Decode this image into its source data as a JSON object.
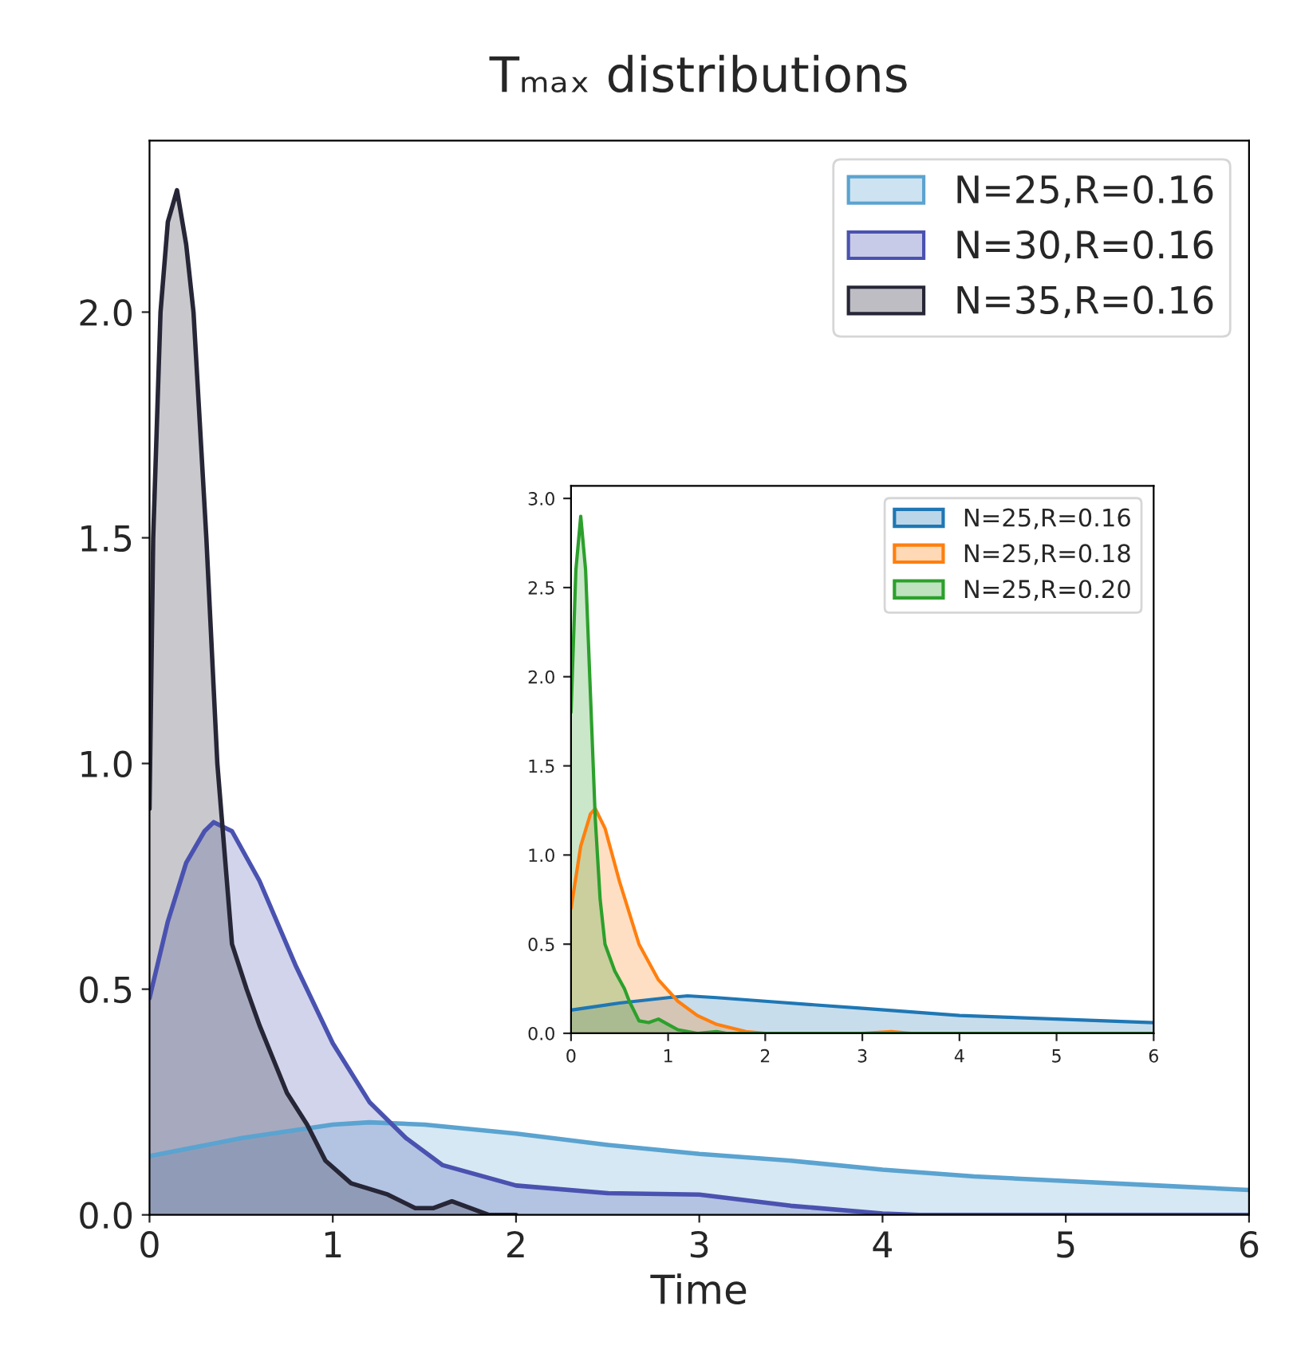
{
  "chart_data": [
    {
      "type": "area",
      "title": "Tₘₐₓ distributions",
      "xlabel": "Time",
      "xlim": [
        0,
        6
      ],
      "xticks": [
        0,
        1,
        2,
        3,
        4,
        5,
        6
      ],
      "ylim": [
        0,
        2.38
      ],
      "yticks": [
        {
          "value": 0,
          "label": "0.0"
        },
        {
          "value": 0.5,
          "label": "0.5"
        },
        {
          "value": 1,
          "label": "1.0"
        },
        {
          "value": 1.5,
          "label": "1.5"
        },
        {
          "value": 2,
          "label": "2.0"
        }
      ],
      "legend": "top right",
      "series": [
        {
          "name": "N=25,R=0.16",
          "color": "#5ba3d0",
          "x": [
            0,
            0.5,
            1,
            1.2,
            1.5,
            2,
            2.5,
            3,
            3.5,
            4,
            4.5,
            5,
            5.5,
            6
          ],
          "values": [
            0.13,
            0.17,
            0.2,
            0.205,
            0.2,
            0.18,
            0.155,
            0.135,
            0.12,
            0.1,
            0.085,
            0.075,
            0.065,
            0.055
          ]
        },
        {
          "name": "N=30,R=0.16",
          "color": "#4a52b0",
          "x": [
            0,
            0.1,
            0.2,
            0.3,
            0.35,
            0.45,
            0.6,
            0.8,
            1,
            1.2,
            1.4,
            1.6,
            2,
            2.5,
            3,
            3.5,
            4,
            4.2,
            6
          ],
          "values": [
            0.48,
            0.65,
            0.78,
            0.85,
            0.87,
            0.85,
            0.74,
            0.55,
            0.38,
            0.25,
            0.17,
            0.11,
            0.065,
            0.048,
            0.045,
            0.02,
            0.003,
            0,
            0
          ]
        },
        {
          "name": "N=35,R=0.16",
          "color": "#262637",
          "x": [
            0,
            0.02,
            0.06,
            0.1,
            0.15,
            0.2,
            0.24,
            0.31,
            0.37,
            0.45,
            0.53,
            0.6,
            0.67,
            0.75,
            0.86,
            0.96,
            1.1,
            1.3,
            1.45,
            1.55,
            1.65,
            1.75,
            1.85,
            2
          ],
          "values": [
            0.9,
            1.5,
            2.0,
            2.2,
            2.27,
            2.15,
            2.0,
            1.5,
            1.0,
            0.6,
            0.5,
            0.42,
            0.35,
            0.27,
            0.2,
            0.12,
            0.07,
            0.045,
            0.015,
            0.015,
            0.03,
            0.015,
            0,
            0
          ]
        }
      ]
    },
    {
      "type": "area",
      "xlim": [
        0,
        6
      ],
      "xticks": [
        0,
        1,
        2,
        3,
        4,
        5,
        6
      ],
      "ylim": [
        0,
        3.07
      ],
      "yticks": [
        {
          "value": 0,
          "label": "0.0"
        },
        {
          "value": 0.5,
          "label": "0.5"
        },
        {
          "value": 1,
          "label": "1.0"
        },
        {
          "value": 1.5,
          "label": "1.5"
        },
        {
          "value": 2,
          "label": "2.0"
        },
        {
          "value": 2.5,
          "label": "2.5"
        },
        {
          "value": 3,
          "label": "3.0"
        }
      ],
      "legend": "top right",
      "series": [
        {
          "name": "N=25,R=0.16",
          "color": "#1f77b4",
          "x": [
            0,
            0.5,
            1,
            1.2,
            1.5,
            2,
            2.5,
            3,
            3.5,
            4,
            4.5,
            5,
            5.5,
            6
          ],
          "values": [
            0.13,
            0.17,
            0.2,
            0.21,
            0.2,
            0.18,
            0.16,
            0.14,
            0.12,
            0.1,
            0.09,
            0.08,
            0.07,
            0.06
          ]
        },
        {
          "name": "N=25,R=0.18",
          "color": "#ff7f0e",
          "x": [
            0,
            0.1,
            0.2,
            0.25,
            0.35,
            0.5,
            0.7,
            0.9,
            1.1,
            1.3,
            1.5,
            1.8,
            2,
            2.5,
            3,
            3.3,
            3.5,
            6
          ],
          "values": [
            0.7,
            1.05,
            1.23,
            1.26,
            1.15,
            0.85,
            0.5,
            0.3,
            0.18,
            0.1,
            0.05,
            0.01,
            0,
            0,
            0,
            0.01,
            0,
            0
          ]
        },
        {
          "name": "N=25,R=0.20",
          "color": "#2ca02c",
          "x": [
            0,
            0.05,
            0.1,
            0.15,
            0.2,
            0.25,
            0.3,
            0.35,
            0.45,
            0.55,
            0.6,
            0.7,
            0.8,
            0.9,
            1,
            1.1,
            1.3,
            1.5,
            1.6,
            6
          ],
          "values": [
            1.8,
            2.6,
            2.9,
            2.6,
            1.9,
            1.2,
            0.75,
            0.5,
            0.35,
            0.25,
            0.18,
            0.07,
            0.06,
            0.08,
            0.05,
            0.02,
            0,
            0.01,
            0,
            0
          ]
        }
      ]
    }
  ]
}
